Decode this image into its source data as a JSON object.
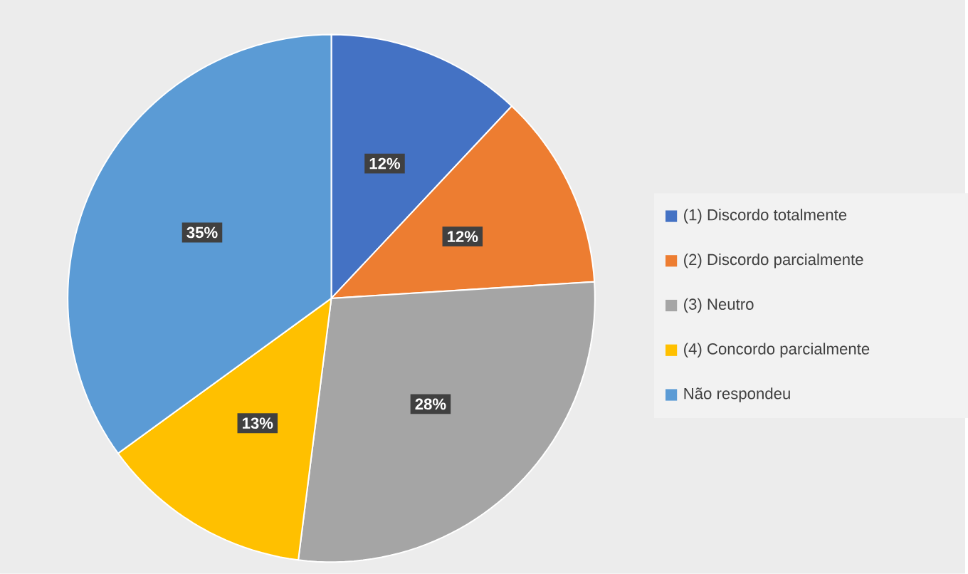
{
  "chart_data": {
    "type": "pie",
    "categories": [
      "(1) Discordo totalmente",
      "(2) Discordo parcialmente",
      "(3) Neutro",
      "(4) Concordo parcialmente",
      "Não respondeu"
    ],
    "values": [
      12,
      12,
      28,
      13,
      35
    ],
    "colors": [
      "#4472c4",
      "#ed7d31",
      "#a5a5a5",
      "#ffc000",
      "#5b9bd5"
    ],
    "value_labels": [
      "12%",
      "12%",
      "28%",
      "13%",
      "35%"
    ],
    "legend": "right"
  }
}
